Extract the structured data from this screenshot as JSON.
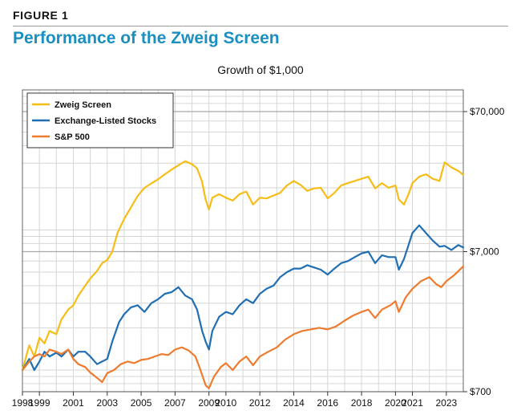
{
  "figure_label": "FIGURE 1",
  "figure_title": "Performance of the Zweig Screen",
  "colors": {
    "zweig": "#f6bd16",
    "exchange": "#1f6fb2",
    "sp500": "#ee7b2e",
    "title": "#1a8fc0"
  },
  "chart_data": {
    "type": "line",
    "title": "Growth of $1,000",
    "y_scale": "log",
    "ylim": [
      700,
      100000
    ],
    "y_ticks": [
      700,
      7000,
      70000
    ],
    "y_tick_labels": [
      "$700",
      "$7,000",
      "$70,000"
    ],
    "xlim": [
      1998.0,
      2024.0
    ],
    "x_ticks": [
      1998,
      1999,
      2001,
      2003,
      2005,
      2007,
      2009,
      2010,
      2012,
      2014,
      2016,
      2018,
      2020,
      2021,
      2023
    ],
    "x_tick_labels": [
      "1998",
      "1999",
      "2001",
      "2003",
      "2005",
      "2007",
      "2009",
      "2010",
      "2012",
      "2014",
      "2016",
      "2018",
      "2020",
      "2021",
      "2023"
    ],
    "grid": true,
    "legend_position": "top-left",
    "series": [
      {
        "name": "Zweig Screen",
        "color_key": "zweig",
        "points": [
          [
            1998.0,
            1000
          ],
          [
            1998.4,
            1500
          ],
          [
            1998.7,
            1250
          ],
          [
            1999.0,
            1700
          ],
          [
            1999.3,
            1550
          ],
          [
            1999.6,
            1900
          ],
          [
            2000.0,
            1800
          ],
          [
            2000.3,
            2300
          ],
          [
            2000.7,
            2700
          ],
          [
            2001.0,
            2900
          ],
          [
            2001.3,
            3400
          ],
          [
            2001.7,
            4000
          ],
          [
            2002.0,
            4500
          ],
          [
            2002.4,
            5100
          ],
          [
            2002.7,
            5800
          ],
          [
            2003.0,
            6100
          ],
          [
            2003.3,
            7000
          ],
          [
            2003.6,
            9500
          ],
          [
            2004.0,
            12000
          ],
          [
            2004.4,
            14500
          ],
          [
            2004.8,
            17500
          ],
          [
            2005.2,
            20000
          ],
          [
            2005.6,
            21500
          ],
          [
            2006.0,
            23000
          ],
          [
            2006.4,
            25000
          ],
          [
            2006.8,
            27000
          ],
          [
            2007.2,
            29000
          ],
          [
            2007.6,
            31000
          ],
          [
            2008.0,
            29500
          ],
          [
            2008.3,
            27500
          ],
          [
            2008.6,
            22000
          ],
          [
            2008.8,
            16500
          ],
          [
            2009.0,
            14000
          ],
          [
            2009.2,
            17000
          ],
          [
            2009.6,
            18000
          ],
          [
            2010.0,
            17000
          ],
          [
            2010.4,
            16200
          ],
          [
            2010.8,
            18000
          ],
          [
            2011.2,
            18800
          ],
          [
            2011.6,
            15200
          ],
          [
            2012.0,
            17000
          ],
          [
            2012.4,
            16800
          ],
          [
            2012.8,
            17600
          ],
          [
            2013.2,
            18400
          ],
          [
            2013.6,
            20800
          ],
          [
            2014.0,
            22400
          ],
          [
            2014.4,
            21000
          ],
          [
            2014.8,
            19000
          ],
          [
            2015.2,
            19800
          ],
          [
            2015.6,
            20000
          ],
          [
            2016.0,
            16800
          ],
          [
            2016.4,
            18400
          ],
          [
            2016.8,
            20800
          ],
          [
            2017.2,
            21600
          ],
          [
            2017.6,
            22400
          ],
          [
            2018.0,
            23200
          ],
          [
            2018.4,
            24000
          ],
          [
            2018.8,
            19800
          ],
          [
            2019.2,
            21600
          ],
          [
            2019.6,
            20000
          ],
          [
            2020.0,
            20800
          ],
          [
            2020.2,
            16500
          ],
          [
            2020.5,
            15200
          ],
          [
            2020.8,
            18400
          ],
          [
            2021.0,
            21600
          ],
          [
            2021.4,
            24000
          ],
          [
            2021.8,
            25000
          ],
          [
            2022.2,
            23200
          ],
          [
            2022.6,
            22400
          ],
          [
            2022.9,
            30400
          ],
          [
            2023.3,
            28000
          ],
          [
            2023.7,
            26400
          ],
          [
            2024.0,
            24800
          ]
        ]
      },
      {
        "name": "Exchange-Listed Stocks",
        "color_key": "exchange",
        "points": [
          [
            1998.0,
            1000
          ],
          [
            1998.4,
            1200
          ],
          [
            1998.7,
            1000
          ],
          [
            1999.0,
            1150
          ],
          [
            1999.3,
            1350
          ],
          [
            1999.6,
            1250
          ],
          [
            2000.0,
            1330
          ],
          [
            2000.3,
            1250
          ],
          [
            2000.7,
            1400
          ],
          [
            2001.0,
            1250
          ],
          [
            2001.3,
            1350
          ],
          [
            2001.7,
            1350
          ],
          [
            2002.0,
            1250
          ],
          [
            2002.4,
            1100
          ],
          [
            2002.7,
            1150
          ],
          [
            2003.0,
            1200
          ],
          [
            2003.3,
            1600
          ],
          [
            2003.7,
            2200
          ],
          [
            2004.0,
            2500
          ],
          [
            2004.4,
            2800
          ],
          [
            2004.8,
            2900
          ],
          [
            2005.2,
            2600
          ],
          [
            2005.6,
            3000
          ],
          [
            2006.0,
            3200
          ],
          [
            2006.4,
            3500
          ],
          [
            2006.8,
            3600
          ],
          [
            2007.2,
            3900
          ],
          [
            2007.6,
            3400
          ],
          [
            2008.0,
            3200
          ],
          [
            2008.3,
            2700
          ],
          [
            2008.6,
            1900
          ],
          [
            2008.8,
            1600
          ],
          [
            2009.0,
            1400
          ],
          [
            2009.2,
            1900
          ],
          [
            2009.6,
            2400
          ],
          [
            2010.0,
            2600
          ],
          [
            2010.4,
            2500
          ],
          [
            2010.8,
            2900
          ],
          [
            2011.2,
            3200
          ],
          [
            2011.6,
            3000
          ],
          [
            2012.0,
            3500
          ],
          [
            2012.4,
            3800
          ],
          [
            2012.8,
            4000
          ],
          [
            2013.2,
            4600
          ],
          [
            2013.6,
            5000
          ],
          [
            2014.0,
            5300
          ],
          [
            2014.4,
            5300
          ],
          [
            2014.8,
            5600
          ],
          [
            2015.2,
            5400
          ],
          [
            2015.6,
            5200
          ],
          [
            2016.0,
            4800
          ],
          [
            2016.4,
            5300
          ],
          [
            2016.8,
            5800
          ],
          [
            2017.2,
            6000
          ],
          [
            2017.6,
            6400
          ],
          [
            2018.0,
            6800
          ],
          [
            2018.4,
            7000
          ],
          [
            2018.8,
            5800
          ],
          [
            2019.2,
            6600
          ],
          [
            2019.6,
            6400
          ],
          [
            2020.0,
            6400
          ],
          [
            2020.2,
            5200
          ],
          [
            2020.5,
            6200
          ],
          [
            2020.8,
            8000
          ],
          [
            2021.0,
            9500
          ],
          [
            2021.4,
            10800
          ],
          [
            2021.8,
            9500
          ],
          [
            2022.2,
            8400
          ],
          [
            2022.6,
            7600
          ],
          [
            2022.9,
            7700
          ],
          [
            2023.3,
            7200
          ],
          [
            2023.7,
            7800
          ],
          [
            2024.0,
            7500
          ]
        ]
      },
      {
        "name": "S&P 500",
        "color_key": "sp500",
        "points": [
          [
            1998.0,
            1000
          ],
          [
            1998.4,
            1150
          ],
          [
            1998.7,
            1250
          ],
          [
            1999.0,
            1300
          ],
          [
            1999.3,
            1250
          ],
          [
            1999.6,
            1400
          ],
          [
            2000.0,
            1350
          ],
          [
            2000.3,
            1300
          ],
          [
            2000.7,
            1400
          ],
          [
            2001.0,
            1200
          ],
          [
            2001.3,
            1100
          ],
          [
            2001.7,
            1050
          ],
          [
            2002.0,
            960
          ],
          [
            2002.4,
            880
          ],
          [
            2002.7,
            820
          ],
          [
            2003.0,
            950
          ],
          [
            2003.4,
            1000
          ],
          [
            2003.8,
            1100
          ],
          [
            2004.2,
            1150
          ],
          [
            2004.6,
            1120
          ],
          [
            2005.0,
            1180
          ],
          [
            2005.4,
            1200
          ],
          [
            2005.8,
            1250
          ],
          [
            2006.2,
            1300
          ],
          [
            2006.6,
            1280
          ],
          [
            2007.0,
            1400
          ],
          [
            2007.4,
            1450
          ],
          [
            2007.8,
            1380
          ],
          [
            2008.2,
            1250
          ],
          [
            2008.5,
            1000
          ],
          [
            2008.8,
            780
          ],
          [
            2009.0,
            740
          ],
          [
            2009.3,
            900
          ],
          [
            2009.7,
            1050
          ],
          [
            2010.0,
            1120
          ],
          [
            2010.4,
            1000
          ],
          [
            2010.8,
            1150
          ],
          [
            2011.2,
            1250
          ],
          [
            2011.6,
            1080
          ],
          [
            2012.0,
            1250
          ],
          [
            2012.5,
            1350
          ],
          [
            2013.0,
            1450
          ],
          [
            2013.5,
            1650
          ],
          [
            2014.0,
            1800
          ],
          [
            2014.5,
            1900
          ],
          [
            2015.0,
            1950
          ],
          [
            2015.5,
            2000
          ],
          [
            2016.0,
            1950
          ],
          [
            2016.5,
            2050
          ],
          [
            2017.0,
            2250
          ],
          [
            2017.5,
            2450
          ],
          [
            2018.0,
            2600
          ],
          [
            2018.4,
            2700
          ],
          [
            2018.8,
            2350
          ],
          [
            2019.2,
            2700
          ],
          [
            2019.7,
            2900
          ],
          [
            2020.0,
            3100
          ],
          [
            2020.2,
            2600
          ],
          [
            2020.6,
            3300
          ],
          [
            2021.0,
            3800
          ],
          [
            2021.5,
            4300
          ],
          [
            2022.0,
            4600
          ],
          [
            2022.4,
            4100
          ],
          [
            2022.7,
            3900
          ],
          [
            2023.0,
            4300
          ],
          [
            2023.5,
            4800
          ],
          [
            2024.0,
            5500
          ]
        ]
      }
    ]
  }
}
